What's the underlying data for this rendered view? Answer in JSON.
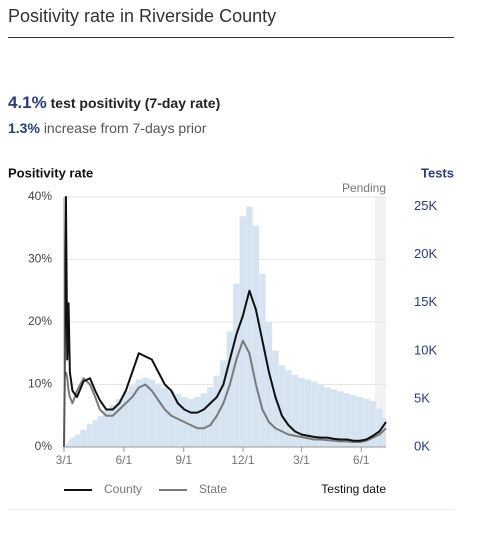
{
  "header": {
    "title": "Positivity rate in Riverside County"
  },
  "stats": {
    "rate": "4.1%",
    "rate_text": "test positivity (7-day rate)",
    "change": "1.3%",
    "change_text": "increase from 7-days prior"
  },
  "chart_data": {
    "type": "line",
    "y_label": "Positivity rate",
    "y2_label": "Tests",
    "x_label": "Testing date",
    "annotation": "Pending",
    "x": [
      0,
      3,
      5,
      7,
      9,
      13,
      20,
      30,
      40,
      48,
      55,
      65,
      75,
      85,
      95,
      105,
      115,
      125,
      135,
      145,
      155,
      165,
      175,
      185,
      195,
      205,
      215,
      225,
      235,
      245,
      255,
      265,
      275,
      285,
      295,
      305,
      315,
      325,
      335,
      345,
      355,
      365,
      375,
      385,
      395,
      405,
      415,
      425,
      435,
      445,
      455,
      465,
      475,
      485,
      495
    ],
    "xlim": [
      0,
      495
    ],
    "xticks": [
      {
        "value": 0,
        "label": "3/1"
      },
      {
        "value": 92,
        "label": "6/1"
      },
      {
        "value": 184,
        "label": "9/1"
      },
      {
        "value": 275,
        "label": "12/1"
      },
      {
        "value": 365,
        "label": "3/1"
      },
      {
        "value": 457,
        "label": "6/1"
      }
    ],
    "ylim": [
      0,
      40
    ],
    "yticks": [
      {
        "value": 0,
        "label": "0%"
      },
      {
        "value": 10,
        "label": "10%"
      },
      {
        "value": 20,
        "label": "20%"
      },
      {
        "value": 30,
        "label": "30%"
      },
      {
        "value": 40,
        "label": "40%"
      }
    ],
    "y2lim": [
      0,
      26000
    ],
    "y2ticks": [
      {
        "value": 0,
        "label": "0K"
      },
      {
        "value": 5000,
        "label": "5K"
      },
      {
        "value": 10000,
        "label": "10K"
      },
      {
        "value": 15000,
        "label": "15K"
      },
      {
        "value": 20000,
        "label": "20K"
      },
      {
        "value": 25000,
        "label": "25K"
      }
    ],
    "grid": true,
    "series": [
      {
        "name": "Tests",
        "type": "bar",
        "axis": "y2",
        "color": "#d6e4f2",
        "values": [
          0,
          200,
          400,
          600,
          800,
          1000,
          1300,
          1800,
          2400,
          2800,
          3200,
          3800,
          4400,
          5000,
          5800,
          6400,
          7000,
          7200,
          7000,
          6600,
          6200,
          5800,
          5500,
          5200,
          5000,
          5200,
          5600,
          6200,
          7400,
          9000,
          12000,
          17000,
          24000,
          25000,
          23000,
          18000,
          13000,
          10000,
          8500,
          8000,
          7500,
          7200,
          7000,
          6800,
          6500,
          6200,
          6000,
          5800,
          5600,
          5400,
          5200,
          5000,
          4800,
          4000,
          3000
        ]
      },
      {
        "name": "State",
        "type": "line",
        "color": "#7a7a7a",
        "values": [
          null,
          12,
          11,
          9,
          8,
          7,
          9,
          11,
          10,
          8,
          6,
          5,
          5,
          6,
          7,
          8,
          9.5,
          10,
          9,
          7.5,
          6,
          5,
          4.5,
          4,
          3.5,
          3,
          3,
          3.5,
          5,
          7,
          10,
          14,
          17,
          15,
          10,
          6,
          4,
          3,
          2.5,
          2,
          1.8,
          1.6,
          1.4,
          1.2,
          1.2,
          1.1,
          1,
          0.9,
          0.9,
          0.8,
          0.8,
          1,
          1.5,
          2,
          3
        ]
      },
      {
        "name": "County",
        "type": "line",
        "color": "#111111",
        "values": [
          0,
          40,
          14,
          23,
          12,
          9,
          8,
          10.5,
          11,
          9,
          7.5,
          6,
          6,
          7,
          9,
          12,
          15,
          14.5,
          14,
          12,
          10,
          9,
          7,
          6,
          5.5,
          5.5,
          6,
          7,
          8,
          10,
          14,
          18,
          21,
          25,
          22,
          17,
          12,
          8,
          5,
          3.5,
          2.5,
          2,
          1.8,
          1.6,
          1.5,
          1.5,
          1.3,
          1.2,
          1.2,
          1,
          1,
          1.2,
          1.8,
          2.5,
          4
        ]
      }
    ]
  }
}
